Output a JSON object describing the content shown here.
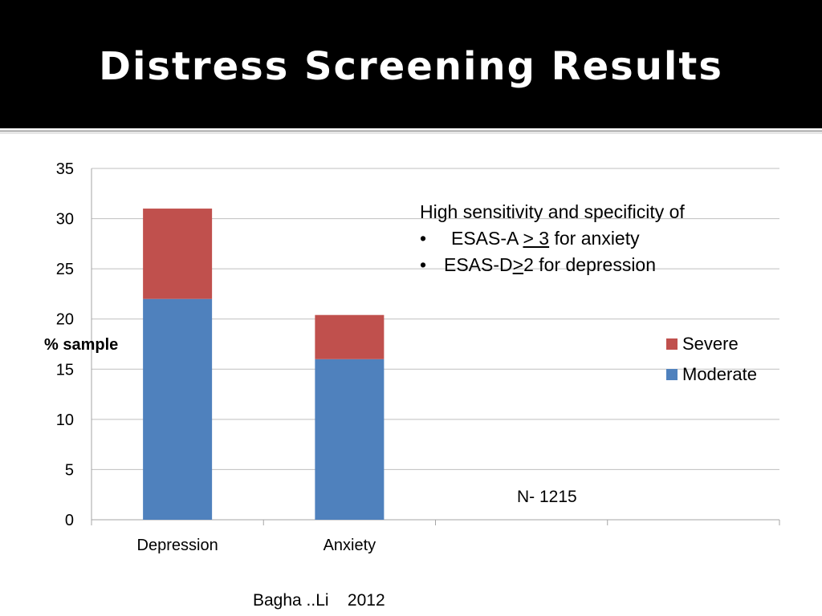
{
  "slide": {
    "title": "Distress Screening Results",
    "source": "Bagha ..Li    2012"
  },
  "annotation": {
    "heading": "High sensitivity and specificity of",
    "bullet1": {
      "bullet": "•",
      "prefix": "ESAS-A ",
      "op": "> 3",
      "suffix": " for anxiety"
    },
    "bullet2": {
      "bullet": "•",
      "prefix": "ESAS-D",
      "op": ">",
      "suffix": "2  for depression"
    },
    "sample_size": "N- 1215"
  },
  "chart_data": {
    "type": "bar",
    "stacked": true,
    "categories": [
      "Depression",
      "Anxiety",
      "",
      ""
    ],
    "series": [
      {
        "name": "Moderate",
        "values": [
          22,
          16,
          null,
          null
        ],
        "color": "#4f81bd"
      },
      {
        "name": "Severe",
        "values": [
          9,
          4.4,
          null,
          null
        ],
        "color": "#c0504d"
      }
    ],
    "title": "",
    "xlabel": "",
    "ylabel": "% sample",
    "ylim": [
      0,
      35
    ],
    "yticks": [
      0,
      5,
      10,
      15,
      20,
      25,
      30,
      35
    ],
    "grid": true,
    "legend_position": "right",
    "legend_order": [
      "Severe",
      "Moderate"
    ]
  }
}
